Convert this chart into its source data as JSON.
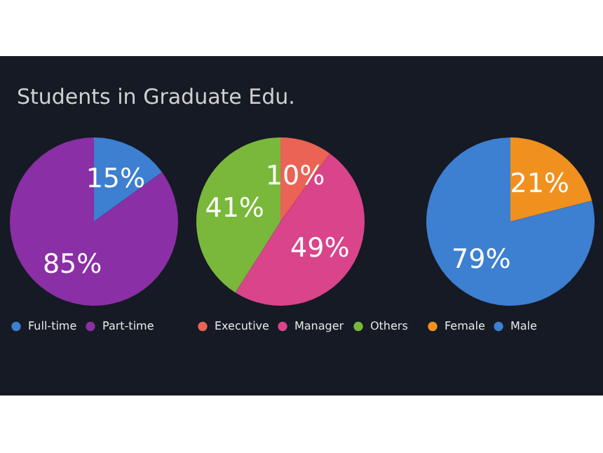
{
  "chart_data": [
    {
      "type": "pie",
      "title": "Students in Graduate Edu.",
      "categories": [
        "Full-time",
        "Part-time"
      ],
      "values": [
        15,
        85
      ],
      "colors": [
        "#3d7fd1",
        "#8a2fa5"
      ],
      "value_labels": [
        "15%",
        "85%"
      ],
      "legend": "bottom"
    },
    {
      "type": "pie",
      "categories": [
        "Executive",
        "Manager",
        "Others"
      ],
      "values": [
        10,
        49,
        41
      ],
      "colors": [
        "#ea6355",
        "#d9448b",
        "#79b83a"
      ],
      "value_labels": [
        "10%",
        "49%",
        "41%"
      ],
      "legend": "bottom"
    },
    {
      "type": "pie",
      "categories": [
        "Female",
        "Male"
      ],
      "values": [
        21,
        79
      ],
      "colors": [
        "#f0901f",
        "#3d7fd1"
      ],
      "value_labels": [
        "21%",
        "79%"
      ],
      "legend": "bottom"
    }
  ]
}
